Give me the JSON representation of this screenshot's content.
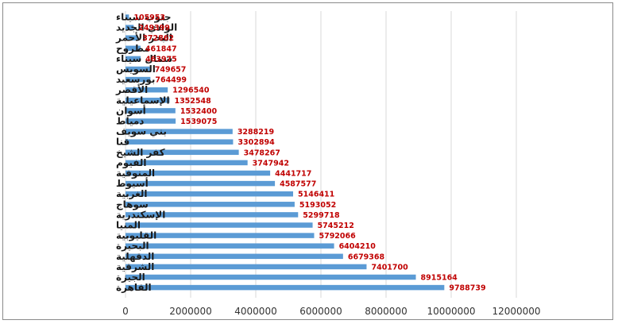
{
  "chart_data": {
    "type": "bar",
    "orientation": "horizontal",
    "categories": [
      "جنوب سيناء",
      "الوادي الجديد",
      "البحر الأحمر",
      "مطروح",
      "شمال سيناء",
      "السويس",
      "بورسعيد",
      "الأقصر",
      "الإسماعيلية",
      "أسوان",
      "دمياط",
      "بني سويف",
      "قنا",
      "كفر الشيخ",
      "الفيوم",
      "المنوفية",
      "أسيوط",
      "الغربية",
      "سوهاج",
      "الإسكندرية",
      "المنيا",
      "القليوبية",
      "البحيرة",
      "الدقهلية",
      "الشرقية",
      "الجيزة",
      "القاهرة"
    ],
    "values": [
      105953,
      249399,
      372862,
      461847,
      463975,
      749657,
      764499,
      1296540,
      1352548,
      1532400,
      1539075,
      3288219,
      3302894,
      3478267,
      3747942,
      4441717,
      4587577,
      5146411,
      5193052,
      5299718,
      5745212,
      5792066,
      6404210,
      6679368,
      7401700,
      8915164,
      9788739
    ],
    "value_labels": [
      "105953",
      "249399",
      "372862",
      "461847",
      "463975",
      "749657",
      "764499",
      "1296540",
      "1352548",
      "1532400",
      "1539075",
      "3288219",
      "3302894",
      "3478267",
      "3747942",
      "4441717",
      "4587577",
      "5146411",
      "5193052",
      "5299718",
      "5745212",
      "5792066",
      "6404210",
      "6679368",
      "7401700",
      "8915164",
      "9788739"
    ],
    "x_ticks": [
      "0",
      "2000000",
      "4000000",
      "6000000",
      "8000000",
      "10000000",
      "12000000"
    ],
    "xlim": [
      0,
      12000000
    ],
    "grid": "vertical",
    "legend": "none",
    "bar_color": "#5b9bd5",
    "label_color": "#c00000",
    "title": "",
    "xlabel": "",
    "ylabel": ""
  }
}
